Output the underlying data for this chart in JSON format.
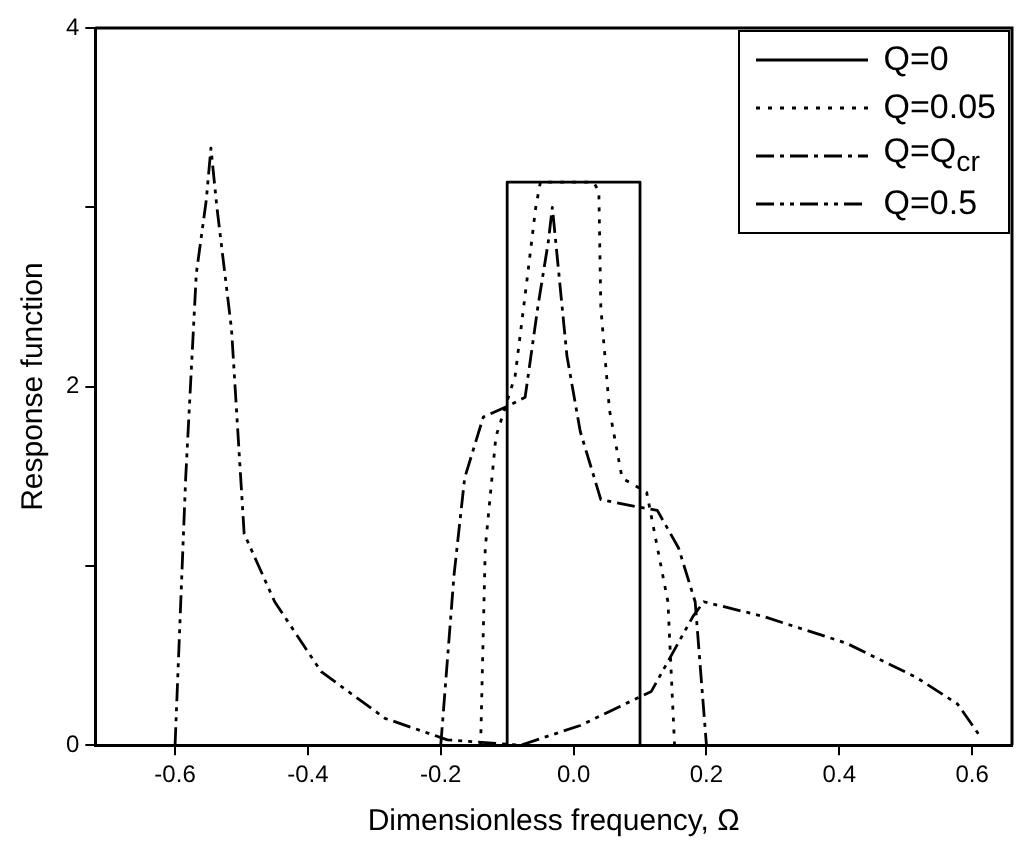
{
  "chart_data": {
    "type": "line",
    "xlabel": "Dimensionless frequency, Ω",
    "ylabel": "Response function",
    "xlim": [
      -0.72,
      0.66
    ],
    "ylim": [
      0,
      4
    ],
    "xticks": [
      -0.6,
      -0.4,
      -0.2,
      {
        "value": 0,
        "label": "0.0"
      },
      0.2,
      0.4,
      0.6
    ],
    "yticks": [
      0,
      {
        "value": 1,
        "label": null
      },
      2,
      {
        "value": 3,
        "label": null
      },
      4
    ],
    "grid": false,
    "legend": "top right",
    "marker": "none",
    "series": [
      {
        "name": "Q=0",
        "color": "#000000",
        "line_style": "solid",
        "x": [
          -0.1,
          -0.1,
          0.1,
          0.1
        ],
        "values": [
          0,
          3.14,
          3.14,
          0
        ]
      },
      {
        "name": "Q=0.05",
        "color": "#000000",
        "line_style": "dotted",
        "x": [
          -0.14,
          -0.133,
          -0.117,
          -0.088,
          -0.069,
          -0.057,
          -0.05,
          0.03,
          0.038,
          0.041,
          0.054,
          0.073,
          0.11,
          0.142,
          0.152
        ],
        "values": [
          0,
          1.1,
          1.72,
          2.06,
          2.63,
          3.0,
          3.14,
          3.14,
          3.09,
          2.44,
          1.87,
          1.49,
          1.41,
          0.8,
          0
        ]
      },
      {
        "name": "Q=Q$_{cr}$",
        "color": "#000000",
        "line_style": "dashdot",
        "x": [
          -0.2,
          -0.18,
          -0.164,
          -0.136,
          -0.1,
          -0.073,
          -0.054,
          -0.038,
          -0.032,
          -0.01,
          0.01,
          0.041,
          0.095,
          0.126,
          0.158,
          0.183,
          0.2
        ],
        "values": [
          0,
          0.95,
          1.49,
          1.83,
          1.89,
          1.94,
          2.44,
          2.81,
          3.0,
          2.17,
          1.75,
          1.37,
          1.33,
          1.31,
          1.1,
          0.8,
          0
        ]
      },
      {
        "name": "Q=0.5",
        "color": "#000000",
        "line_style": "dashdotdot",
        "x": [
          -0.6,
          -0.584,
          -0.568,
          -0.553,
          -0.546,
          -0.537,
          -0.515,
          -0.496,
          -0.45,
          -0.38,
          -0.284,
          -0.19,
          -0.08,
          0.01,
          0.117,
          0.18,
          0.196,
          0.284,
          0.41,
          0.515,
          0.578,
          0.61
        ],
        "values": [
          0,
          1.49,
          2.63,
          3.04,
          3.33,
          3.0,
          2.32,
          1.18,
          0.8,
          0.41,
          0.15,
          0.03,
          0,
          0.11,
          0.3,
          0.72,
          0.8,
          0.72,
          0.57,
          0.38,
          0.23,
          0.06
        ]
      }
    ]
  }
}
